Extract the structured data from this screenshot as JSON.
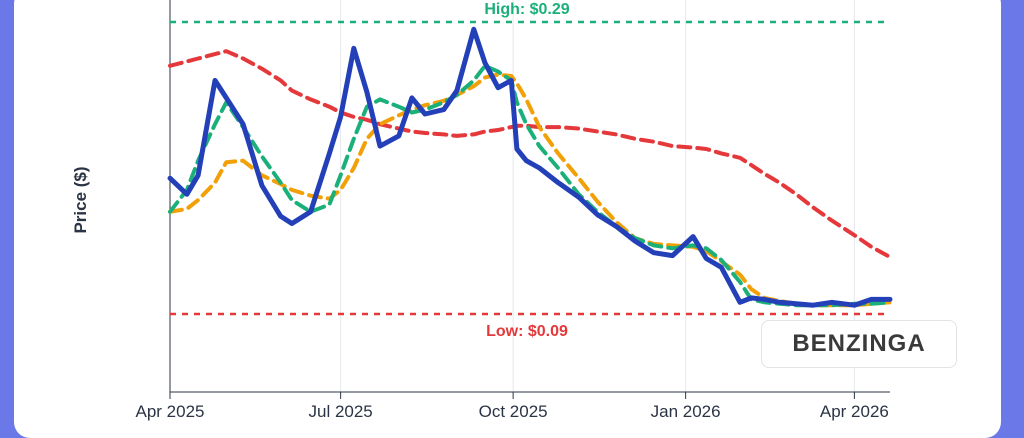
{
  "chart_data": {
    "type": "line",
    "title": "",
    "xlabel": "",
    "ylabel": "Price ($)",
    "x_ticks": [
      "Apr 2025",
      "Jul 2025",
      "Oct 2025",
      "Jan 2026",
      "Apr 2026"
    ],
    "x_range": [
      "2025-04-01",
      "2026-04-20"
    ],
    "y_range": [
      0.05,
      0.3
    ],
    "grid": "vertical",
    "reference_lines": [
      {
        "label": "High: $0.29",
        "value": 0.29,
        "color": "#1bb07a"
      },
      {
        "label": "Low: $0.09",
        "value": 0.09,
        "color": "#e5383b"
      }
    ],
    "watermark": "BENZINGA",
    "x_dates": [
      "2025-04-01",
      "2025-04-10",
      "2025-04-16",
      "2025-04-25",
      "2025-05-01",
      "2025-05-10",
      "2025-05-20",
      "2025-05-30",
      "2025-06-05",
      "2025-06-15",
      "2025-06-25",
      "2025-07-01",
      "2025-07-08",
      "2025-07-15",
      "2025-07-22",
      "2025-08-01",
      "2025-08-08",
      "2025-08-15",
      "2025-08-25",
      "2025-09-01",
      "2025-09-10",
      "2025-09-16",
      "2025-09-23",
      "2025-09-30",
      "2025-10-03",
      "2025-10-08",
      "2025-10-15",
      "2025-10-25",
      "2025-11-05",
      "2025-11-15",
      "2025-11-25",
      "2025-12-05",
      "2025-12-15",
      "2025-12-25",
      "2026-01-05",
      "2026-01-12",
      "2026-01-20",
      "2026-01-30",
      "2026-02-05",
      "2026-02-12",
      "2026-02-20",
      "2026-03-01",
      "2026-03-10",
      "2026-03-20",
      "2026-04-01",
      "2026-04-10",
      "2026-04-20"
    ],
    "series": [
      {
        "name": "",
        "color": "#2440b8",
        "style": "solid",
        "values": [
          0.183,
          0.172,
          0.185,
          0.25,
          0.238,
          0.22,
          0.178,
          0.157,
          0.152,
          0.16,
          0.2,
          0.225,
          0.272,
          0.242,
          0.205,
          0.212,
          0.238,
          0.227,
          0.23,
          0.243,
          0.285,
          0.262,
          0.245,
          0.25,
          0.203,
          0.195,
          0.19,
          0.18,
          0.17,
          0.158,
          0.15,
          0.14,
          0.132,
          0.13,
          0.143,
          0.128,
          0.122,
          0.098,
          0.101,
          0.1,
          0.098,
          0.097,
          0.096,
          0.098,
          0.096,
          0.1,
          0.1
        ]
      },
      {
        "name": "",
        "color": "#1bb07a",
        "style": "dashed",
        "values": [
          0.16,
          0.175,
          0.195,
          0.22,
          0.235,
          0.218,
          0.198,
          0.18,
          0.168,
          0.16,
          0.165,
          0.185,
          0.21,
          0.232,
          0.237,
          0.232,
          0.228,
          0.23,
          0.235,
          0.24,
          0.25,
          0.26,
          0.256,
          0.25,
          0.235,
          0.22,
          0.205,
          0.19,
          0.172,
          0.16,
          0.15,
          0.142,
          0.137,
          0.135,
          0.137,
          0.135,
          0.127,
          0.112,
          0.1,
          0.098,
          0.097,
          0.096,
          0.096,
          0.096,
          0.097,
          0.097,
          0.098
        ]
      },
      {
        "name": "",
        "color": "#f2a007",
        "style": "dashed",
        "values": [
          0.16,
          0.162,
          0.168,
          0.18,
          0.194,
          0.195,
          0.185,
          0.179,
          0.175,
          0.171,
          0.169,
          0.175,
          0.19,
          0.21,
          0.22,
          0.226,
          0.23,
          0.233,
          0.236,
          0.24,
          0.246,
          0.252,
          0.254,
          0.253,
          0.248,
          0.237,
          0.218,
          0.2,
          0.183,
          0.167,
          0.153,
          0.142,
          0.138,
          0.137,
          0.136,
          0.133,
          0.126,
          0.117,
          0.107,
          0.101,
          0.099,
          0.097,
          0.096,
          0.096,
          0.096,
          0.097,
          0.098
        ]
      },
      {
        "name": "",
        "color": "#e5383b",
        "style": "dashed",
        "values": [
          0.26,
          0.263,
          0.265,
          0.268,
          0.27,
          0.265,
          0.258,
          0.25,
          0.243,
          0.237,
          0.232,
          0.228,
          0.225,
          0.223,
          0.22,
          0.217,
          0.215,
          0.214,
          0.213,
          0.212,
          0.213,
          0.215,
          0.216,
          0.218,
          0.219,
          0.219,
          0.218,
          0.218,
          0.217,
          0.215,
          0.213,
          0.21,
          0.208,
          0.205,
          0.204,
          0.203,
          0.2,
          0.197,
          0.192,
          0.186,
          0.18,
          0.172,
          0.163,
          0.154,
          0.144,
          0.136,
          0.129
        ]
      }
    ]
  }
}
